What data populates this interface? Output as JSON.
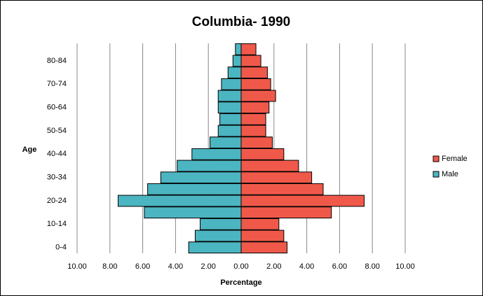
{
  "chart_data": {
    "type": "pyramid",
    "title": "Columbia- 1990",
    "xlabel": "Percentage",
    "ylabel": "Age",
    "categories": [
      "0-4",
      null,
      "10-14",
      null,
      "20-24",
      null,
      "30-34",
      null,
      "40-44",
      null,
      "50-54",
      null,
      "60-64",
      null,
      "70-74",
      null,
      "80-84",
      null
    ],
    "series": [
      {
        "name": "Male",
        "color": "#4bb5c1",
        "values": [
          -3.2,
          -2.8,
          -2.5,
          -5.9,
          -7.5,
          -5.7,
          -4.9,
          -3.9,
          -3.0,
          -1.9,
          -1.4,
          -1.3,
          -1.4,
          -1.4,
          -1.2,
          -0.8,
          -0.5,
          -0.35
        ]
      },
      {
        "name": "Female",
        "color": "#f0594a",
        "values": [
          2.8,
          2.6,
          2.3,
          5.5,
          7.5,
          5.0,
          4.3,
          3.5,
          2.6,
          1.9,
          1.5,
          1.5,
          1.7,
          2.1,
          1.8,
          1.6,
          1.2,
          0.9
        ]
      }
    ],
    "xlim": [
      -10,
      10
    ],
    "xticks": [
      {
        "value": -10,
        "label": "10.00"
      },
      {
        "value": -8,
        "label": "8.00"
      },
      {
        "value": -6,
        "label": "6.00"
      },
      {
        "value": -4,
        "label": "4.00"
      },
      {
        "value": -2,
        "label": "2.00"
      },
      {
        "value": 0,
        "label": "0.00"
      },
      {
        "value": 2,
        "label": "2.00"
      },
      {
        "value": 4,
        "label": "4.00"
      },
      {
        "value": 6,
        "label": "6.00"
      },
      {
        "value": 8,
        "label": "8.00"
      },
      {
        "value": 10,
        "label": "10.00"
      }
    ],
    "grid": true,
    "legend": "right"
  }
}
